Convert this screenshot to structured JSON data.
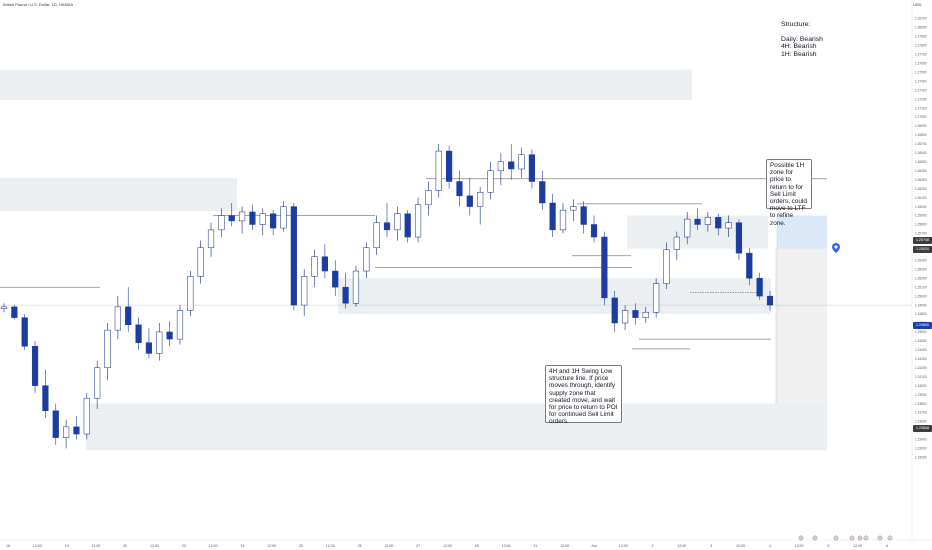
{
  "header": {
    "symbol": "British Pound / U.S. Dollar, 1D, OANDA",
    "currency": "USD"
  },
  "annotations": {
    "structure": "Structure:\n\nDaily: Bearish\n4H: Bearish\n1H: Bearish",
    "possible_zone": "Possible 1H zone for price to return to for Sell Limit orders, could move to LTF to refine zone.",
    "swing_low": "4H and 1H Swing Low structure line. If price moves through, identify supply zone that created move, and wait for price to return to POI for continued Sell Limit orders."
  },
  "colors": {
    "bull": "#0f2b7e",
    "bear": "#1c3d9f",
    "zone": "#eceff1",
    "line": "#4a4a4a",
    "blue_zone": "#dbe8f7",
    "pin": "#2962ff",
    "price_label": "#1c3fa7",
    "price_dark": "#3d3d3d"
  },
  "price_tags": {
    "current": "1.24840",
    "upper": "1.25748",
    "upper2": "1.25520",
    "lower": "1.23848"
  },
  "chart_data": {
    "type": "candlestick",
    "title": "British Pound / U.S. Dollar",
    "ylim": [
      1.2231,
      1.2824
    ],
    "y_ticks": [
      "1.28100",
      "1.28000",
      "1.27900",
      "1.27800",
      "1.27700",
      "1.27600",
      "1.27500",
      "1.27400",
      "1.27300",
      "1.27200",
      "1.27100",
      "1.27000",
      "1.26900",
      "1.26800",
      "1.26700",
      "1.26600",
      "1.26500",
      "1.26400",
      "1.26300",
      "1.26200",
      "1.26100",
      "1.26000",
      "1.25900",
      "1.25800",
      "1.25700",
      "1.25600",
      "1.25500",
      "1.25400",
      "1.25300",
      "1.25200",
      "1.25100",
      "1.25000",
      "1.24900",
      "1.24800",
      "1.24700",
      "1.24600",
      "1.24500",
      "1.24400",
      "1.24300",
      "1.24200",
      "1.24100",
      "1.24000",
      "1.23900",
      "1.23800",
      "1.23700",
      "1.23600",
      "1.23500",
      "1.23400",
      "1.23300",
      "1.23200"
    ],
    "x_ticks": [
      "18",
      "12:00",
      "19",
      "12:00",
      "20",
      "12:00",
      "23",
      "12:00",
      "24",
      "12:00",
      "25",
      "12:00",
      "26",
      "12:00",
      "27",
      "12:00",
      "28",
      "12:00",
      "31",
      "12:00",
      "Jun",
      "12:00",
      "2",
      "12:00",
      "3",
      "12:00",
      "4",
      "12:00",
      "5",
      "12:00",
      "6"
    ],
    "levels": [
      1.2631,
      1.2603,
      1.259,
      1.2545,
      1.2532,
      1.251,
      1.2504,
      1.2452,
      1.2441
    ],
    "zones": [
      {
        "from": 1.2753,
        "to": 1.2719
      },
      {
        "from": 1.2632,
        "to": 1.2595
      },
      {
        "from": 1.259,
        "to": 1.2553
      },
      {
        "from": 1.252,
        "to": 1.248
      },
      {
        "from": 1.238,
        "to": 1.2328
      },
      {
        "from": 1.2555,
        "to": 1.238
      }
    ],
    "series": [
      {
        "values": [
          {
            "o": 1.2486,
            "h": 1.2492,
            "l": 1.2482,
            "c": 1.2488
          },
          {
            "o": 1.2488,
            "h": 1.249,
            "l": 1.2474,
            "c": 1.2476
          },
          {
            "o": 1.2476,
            "h": 1.248,
            "l": 1.244,
            "c": 1.2444
          },
          {
            "o": 1.2444,
            "h": 1.245,
            "l": 1.2392,
            "c": 1.24
          },
          {
            "o": 1.24,
            "h": 1.2418,
            "l": 1.2364,
            "c": 1.2372
          },
          {
            "o": 1.2372,
            "h": 1.238,
            "l": 1.2334,
            "c": 1.2342
          },
          {
            "o": 1.2342,
            "h": 1.2362,
            "l": 1.233,
            "c": 1.2354
          },
          {
            "o": 1.2354,
            "h": 1.2366,
            "l": 1.234,
            "c": 1.2346
          },
          {
            "o": 1.2346,
            "h": 1.2392,
            "l": 1.234,
            "c": 1.2386
          },
          {
            "o": 1.2386,
            "h": 1.2428,
            "l": 1.2374,
            "c": 1.242
          },
          {
            "o": 1.242,
            "h": 1.247,
            "l": 1.2406,
            "c": 1.2462
          },
          {
            "o": 1.2462,
            "h": 1.25,
            "l": 1.2452,
            "c": 1.2488
          },
          {
            "o": 1.2488,
            "h": 1.251,
            "l": 1.246,
            "c": 1.2468
          },
          {
            "o": 1.2468,
            "h": 1.2476,
            "l": 1.244,
            "c": 1.2448
          },
          {
            "o": 1.2448,
            "h": 1.2464,
            "l": 1.243,
            "c": 1.2436
          },
          {
            "o": 1.2436,
            "h": 1.247,
            "l": 1.2428,
            "c": 1.246
          },
          {
            "o": 1.246,
            "h": 1.2472,
            "l": 1.2444,
            "c": 1.2452
          },
          {
            "o": 1.2452,
            "h": 1.249,
            "l": 1.2446,
            "c": 1.2484
          },
          {
            "o": 1.2484,
            "h": 1.2528,
            "l": 1.2478,
            "c": 1.2522
          },
          {
            "o": 1.2522,
            "h": 1.2562,
            "l": 1.2514,
            "c": 1.2554
          },
          {
            "o": 1.2554,
            "h": 1.2582,
            "l": 1.2544,
            "c": 1.2574
          },
          {
            "o": 1.2574,
            "h": 1.2598,
            "l": 1.2566,
            "c": 1.259
          },
          {
            "o": 1.259,
            "h": 1.2604,
            "l": 1.2578,
            "c": 1.2584
          },
          {
            "o": 1.2584,
            "h": 1.26,
            "l": 1.257,
            "c": 1.2594
          },
          {
            "o": 1.2594,
            "h": 1.2602,
            "l": 1.2574,
            "c": 1.258
          },
          {
            "o": 1.258,
            "h": 1.2598,
            "l": 1.2568,
            "c": 1.2592
          },
          {
            "o": 1.2592,
            "h": 1.2596,
            "l": 1.2568,
            "c": 1.2576
          },
          {
            "o": 1.2576,
            "h": 1.2606,
            "l": 1.2572,
            "c": 1.26
          },
          {
            "o": 1.26,
            "h": 1.2604,
            "l": 1.2484,
            "c": 1.249
          },
          {
            "o": 1.249,
            "h": 1.253,
            "l": 1.2478,
            "c": 1.2522
          },
          {
            "o": 1.2522,
            "h": 1.2552,
            "l": 1.251,
            "c": 1.2544
          },
          {
            "o": 1.2544,
            "h": 1.2558,
            "l": 1.252,
            "c": 1.2528
          },
          {
            "o": 1.2528,
            "h": 1.254,
            "l": 1.25,
            "c": 1.251
          },
          {
            "o": 1.251,
            "h": 1.2526,
            "l": 1.2486,
            "c": 1.2492
          },
          {
            "o": 1.2492,
            "h": 1.2534,
            "l": 1.2488,
            "c": 1.2528
          },
          {
            "o": 1.2528,
            "h": 1.256,
            "l": 1.252,
            "c": 1.2554
          },
          {
            "o": 1.2554,
            "h": 1.259,
            "l": 1.2546,
            "c": 1.2582
          },
          {
            "o": 1.2582,
            "h": 1.2604,
            "l": 1.2566,
            "c": 1.2574
          },
          {
            "o": 1.2574,
            "h": 1.26,
            "l": 1.2562,
            "c": 1.2592
          },
          {
            "o": 1.2592,
            "h": 1.2596,
            "l": 1.256,
            "c": 1.2566
          },
          {
            "o": 1.2566,
            "h": 1.261,
            "l": 1.256,
            "c": 1.2602
          },
          {
            "o": 1.2602,
            "h": 1.2628,
            "l": 1.259,
            "c": 1.2618
          },
          {
            "o": 1.2618,
            "h": 1.267,
            "l": 1.261,
            "c": 1.2662
          },
          {
            "o": 1.2662,
            "h": 1.2668,
            "l": 1.262,
            "c": 1.2628
          },
          {
            "o": 1.2628,
            "h": 1.264,
            "l": 1.26,
            "c": 1.2612
          },
          {
            "o": 1.2612,
            "h": 1.2632,
            "l": 1.259,
            "c": 1.26
          },
          {
            "o": 1.26,
            "h": 1.2622,
            "l": 1.258,
            "c": 1.2616
          },
          {
            "o": 1.2616,
            "h": 1.265,
            "l": 1.2608,
            "c": 1.264
          },
          {
            "o": 1.264,
            "h": 1.266,
            "l": 1.2624,
            "c": 1.265
          },
          {
            "o": 1.265,
            "h": 1.267,
            "l": 1.263,
            "c": 1.2642
          },
          {
            "o": 1.2642,
            "h": 1.2666,
            "l": 1.2632,
            "c": 1.2658
          },
          {
            "o": 1.2658,
            "h": 1.2664,
            "l": 1.262,
            "c": 1.2628
          },
          {
            "o": 1.2628,
            "h": 1.264,
            "l": 1.2596,
            "c": 1.2604
          },
          {
            "o": 1.2604,
            "h": 1.2614,
            "l": 1.2566,
            "c": 1.2574
          },
          {
            "o": 1.2574,
            "h": 1.2604,
            "l": 1.257,
            "c": 1.2596
          },
          {
            "o": 1.2596,
            "h": 1.2608,
            "l": 1.2584,
            "c": 1.26
          },
          {
            "o": 1.26,
            "h": 1.2606,
            "l": 1.257,
            "c": 1.258
          },
          {
            "o": 1.258,
            "h": 1.259,
            "l": 1.256,
            "c": 1.2566
          },
          {
            "o": 1.2566,
            "h": 1.2572,
            "l": 1.249,
            "c": 1.2498
          },
          {
            "o": 1.2498,
            "h": 1.2506,
            "l": 1.246,
            "c": 1.247
          },
          {
            "o": 1.247,
            "h": 1.249,
            "l": 1.2462,
            "c": 1.2484
          },
          {
            "o": 1.2484,
            "h": 1.2492,
            "l": 1.2468,
            "c": 1.2476
          },
          {
            "o": 1.2476,
            "h": 1.2488,
            "l": 1.247,
            "c": 1.2482
          },
          {
            "o": 1.2482,
            "h": 1.252,
            "l": 1.2476,
            "c": 1.2514
          },
          {
            "o": 1.2514,
            "h": 1.256,
            "l": 1.2508,
            "c": 1.2552
          },
          {
            "o": 1.2552,
            "h": 1.2572,
            "l": 1.254,
            "c": 1.2566
          },
          {
            "o": 1.2566,
            "h": 1.2594,
            "l": 1.2558,
            "c": 1.2586
          },
          {
            "o": 1.2586,
            "h": 1.2598,
            "l": 1.2574,
            "c": 1.258
          },
          {
            "o": 1.258,
            "h": 1.2594,
            "l": 1.2572,
            "c": 1.2588
          },
          {
            "o": 1.2588,
            "h": 1.2592,
            "l": 1.2568,
            "c": 1.2576
          },
          {
            "o": 1.2576,
            "h": 1.259,
            "l": 1.2566,
            "c": 1.2582
          },
          {
            "o": 1.2582,
            "h": 1.2586,
            "l": 1.254,
            "c": 1.2548
          },
          {
            "o": 1.2548,
            "h": 1.2554,
            "l": 1.2512,
            "c": 1.252
          },
          {
            "o": 1.252,
            "h": 1.2526,
            "l": 1.2496,
            "c": 1.25
          },
          {
            "o": 1.25,
            "h": 1.2506,
            "l": 1.2484,
            "c": 1.249
          }
        ]
      }
    ]
  }
}
